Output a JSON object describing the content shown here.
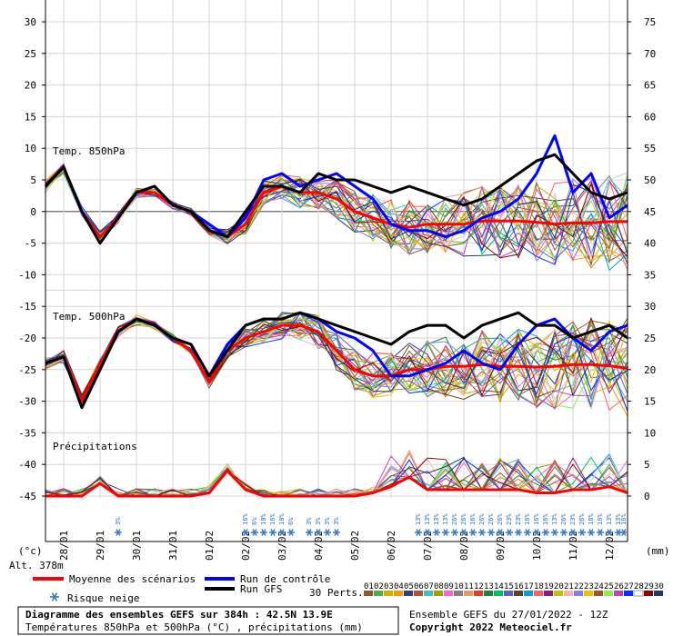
{
  "chart_data": {
    "type": "line",
    "title": "Diagramme des ensembles GEFS sur 384h : 42.5N 13.9E",
    "subtitle": "Températures 850hPa et 500hPa (°C) , précipitations (mm)",
    "run_info": "Ensemble GEFS du 27/01/2022 - 12Z",
    "copyright": "Copyright 2022 Meteociel.fr",
    "altitude": "Alt. 378m",
    "xlabel": "",
    "ylabel_left": "(°c)",
    "ylabel_right": "(mm)",
    "ylim_left": [
      -45,
      30
    ],
    "ylim_right": [
      0,
      75
    ],
    "y_ticks_left": [
      "30",
      "25",
      "20",
      "15",
      "10",
      "5",
      "0",
      "-5",
      "-10",
      "-15",
      "-20",
      "-25",
      "-30",
      "-35",
      "-40",
      "-45"
    ],
    "y_ticks_right": [
      "75",
      "70",
      "65",
      "60",
      "55",
      "50",
      "45",
      "40",
      "35",
      "30",
      "25",
      "20",
      "15",
      "10",
      "5",
      "0"
    ],
    "x_ticks": [
      "28/01",
      "29/01",
      "30/01",
      "31/01",
      "01/02",
      "02/02",
      "03/02",
      "04/02",
      "05/02",
      "06/02",
      "07/02",
      "08/02",
      "09/02",
      "10/02",
      "11/02",
      "12/02"
    ],
    "x_range_hours": [
      0,
      384
    ],
    "grid": true,
    "sections": {
      "t850_label": "Temp. 850hPa",
      "t500_label": "Temp. 500hPa",
      "precip_label": "Précipitations"
    },
    "x_hours": [
      0,
      12,
      24,
      36,
      48,
      60,
      72,
      84,
      96,
      108,
      120,
      132,
      144,
      156,
      168,
      180,
      192,
      204,
      216,
      228,
      240,
      252,
      264,
      276,
      288,
      300,
      312,
      324,
      336,
      348,
      360,
      372,
      384
    ],
    "series": [
      {
        "name": "Moyenne des scénarios",
        "group": "t850",
        "color": "#ff0000",
        "values": [
          4,
          7,
          0,
          -4,
          -1,
          3,
          3,
          1,
          0,
          -3,
          -4,
          -2,
          3,
          4,
          3,
          3,
          2,
          0,
          -1,
          -2,
          -2.5,
          -2,
          -2,
          -2,
          -1.5,
          -1.5,
          -1.5,
          -1.7,
          -2,
          -1.8,
          -1.8,
          -1.6,
          -1.6
        ]
      },
      {
        "name": "Run de contrôle",
        "group": "t850",
        "color": "#0000ff",
        "values": [
          4,
          7,
          0,
          -5,
          -1,
          3,
          4,
          1,
          0,
          -2,
          -4,
          -1,
          5,
          6,
          4,
          5,
          6,
          4,
          2,
          -2,
          -3,
          -3,
          -4,
          -3,
          -1,
          0,
          2,
          6,
          12,
          3,
          6,
          -1,
          1
        ]
      },
      {
        "name": "Run GFS",
        "group": "t850",
        "color": "#000000",
        "values": [
          4,
          7,
          0,
          -5,
          -1,
          3,
          4,
          1,
          0,
          -3,
          -4,
          0,
          4,
          4,
          3,
          6,
          5,
          5,
          4,
          3,
          4,
          3,
          2,
          1,
          2,
          4,
          6,
          8,
          9,
          6,
          3,
          2,
          3
        ]
      },
      {
        "name": "Moyenne des scénarios",
        "group": "t500",
        "color": "#ff0000",
        "values": [
          -24,
          -23,
          -30,
          -24,
          -19,
          -17,
          -18,
          -20,
          -22,
          -27,
          -22,
          -20,
          -19,
          -18,
          -18,
          -19,
          -22,
          -25,
          -26,
          -26,
          -25,
          -25,
          -24.5,
          -24.5,
          -24.2,
          -24.5,
          -24.5,
          -24.6,
          -24.5,
          -24.2,
          -24.2,
          -24.4,
          -24.8
        ]
      },
      {
        "name": "Run de contrôle",
        "group": "t500",
        "color": "#0000ff",
        "values": [
          -24,
          -23,
          -31,
          -25,
          -19,
          -17,
          -18,
          -20,
          -21,
          -26,
          -21,
          -18,
          -17,
          -17,
          -16,
          -17,
          -19,
          -20,
          -22,
          -26,
          -26,
          -25,
          -24,
          -22,
          -24,
          -25,
          -21,
          -18,
          -17,
          -20,
          -22,
          -19,
          -18
        ]
      },
      {
        "name": "Run GFS",
        "group": "t500",
        "color": "#000000",
        "values": [
          -24,
          -23,
          -31,
          -25,
          -19,
          -17,
          -18,
          -20,
          -21,
          -26,
          -22,
          -18,
          -17,
          -17,
          -16,
          -17,
          -18,
          -19,
          -20,
          -21,
          -19,
          -18,
          -18,
          -20,
          -18,
          -17,
          -16,
          -18,
          -18,
          -20,
          -19,
          -18,
          -20
        ]
      },
      {
        "name": "Moyenne des scénarios",
        "group": "precip",
        "color": "#ff0000",
        "values": [
          0,
          0,
          0,
          2,
          0,
          0,
          0,
          0,
          0,
          0.5,
          4,
          1,
          0,
          0,
          0,
          0,
          0,
          0,
          0.5,
          1.5,
          3,
          1,
          1,
          1,
          1,
          1,
          1,
          0.5,
          0.5,
          1,
          1,
          1.5,
          0.5
        ]
      }
    ],
    "snow_risk": [
      {
        "hour": 48,
        "label": "3%"
      },
      {
        "hour": 132,
        "label": "16%"
      },
      {
        "hour": 138,
        "label": "6%"
      },
      {
        "hour": 144,
        "label": "10%"
      },
      {
        "hour": 150,
        "label": "16%"
      },
      {
        "hour": 156,
        "label": "10%"
      },
      {
        "hour": 162,
        "label": "6%"
      },
      {
        "hour": 174,
        "label": "3%"
      },
      {
        "hour": 180,
        "label": "3%"
      },
      {
        "hour": 186,
        "label": "3%"
      },
      {
        "hour": 192,
        "label": "3%"
      },
      {
        "hour": 246,
        "label": "13%"
      },
      {
        "hour": 252,
        "label": "13%"
      },
      {
        "hour": 258,
        "label": "13%"
      },
      {
        "hour": 264,
        "label": "13%"
      },
      {
        "hour": 270,
        "label": "26%"
      },
      {
        "hour": 276,
        "label": "26%"
      },
      {
        "hour": 282,
        "label": "16%"
      },
      {
        "hour": 288,
        "label": "26%"
      },
      {
        "hour": 294,
        "label": "26%"
      },
      {
        "hour": 300,
        "label": "26%"
      },
      {
        "hour": 306,
        "label": "23%"
      },
      {
        "hour": 312,
        "label": "23%"
      },
      {
        "hour": 318,
        "label": "16%"
      },
      {
        "hour": 324,
        "label": "16%"
      },
      {
        "hour": 330,
        "label": "16%"
      },
      {
        "hour": 336,
        "label": "13%"
      },
      {
        "hour": 342,
        "label": "26%"
      },
      {
        "hour": 348,
        "label": "23%"
      },
      {
        "hour": 354,
        "label": "26%"
      },
      {
        "hour": 360,
        "label": "16%"
      },
      {
        "hour": 366,
        "label": "16%"
      },
      {
        "hour": 372,
        "label": "13%"
      },
      {
        "hour": 378,
        "label": "13%"
      },
      {
        "hour": 384,
        "label": "16%"
      }
    ],
    "legend": {
      "mean": "Moyenne des scénarios",
      "control": "Run de contrôle",
      "gfs": "Run GFS",
      "snow": "Risque neige",
      "perts": "30 Perts."
    },
    "perturbations": [
      {
        "id": "01",
        "color": "#8b5a2b"
      },
      {
        "id": "02",
        "color": "#4cae4c"
      },
      {
        "id": "03",
        "color": "#d0b000"
      },
      {
        "id": "04",
        "color": "#ff9900"
      },
      {
        "id": "05",
        "color": "#3c3c78"
      },
      {
        "id": "06",
        "color": "#b05030"
      },
      {
        "id": "07",
        "color": "#40c0c0"
      },
      {
        "id": "08",
        "color": "#a0a000"
      },
      {
        "id": "09",
        "color": "#ff66cc"
      },
      {
        "id": "10",
        "color": "#808080"
      },
      {
        "id": "11",
        "color": "#e0a060"
      },
      {
        "id": "12",
        "color": "#e04020"
      },
      {
        "id": "13",
        "color": "#208040"
      },
      {
        "id": "14",
        "color": "#00c060"
      },
      {
        "id": "15",
        "color": "#6060c0"
      },
      {
        "id": "16",
        "color": "#604020"
      },
      {
        "id": "17",
        "color": "#00a0e0"
      },
      {
        "id": "18",
        "color": "#ff6060"
      },
      {
        "id": "19",
        "color": "#802080"
      },
      {
        "id": "20",
        "color": "#c0c000"
      },
      {
        "id": "21",
        "color": "#ffb0b0"
      },
      {
        "id": "22",
        "color": "#8080ff"
      },
      {
        "id": "23",
        "color": "#f0c000"
      },
      {
        "id": "24",
        "color": "#a0522d"
      },
      {
        "id": "25",
        "color": "#90ee40"
      },
      {
        "id": "26",
        "color": "#c040c0"
      },
      {
        "id": "27",
        "color": "#0030ff"
      },
      {
        "id": "28",
        "color": "#ffffff"
      },
      {
        "id": "29",
        "color": "#8b0000"
      },
      {
        "id": "30",
        "color": "#1e3c64"
      }
    ]
  }
}
